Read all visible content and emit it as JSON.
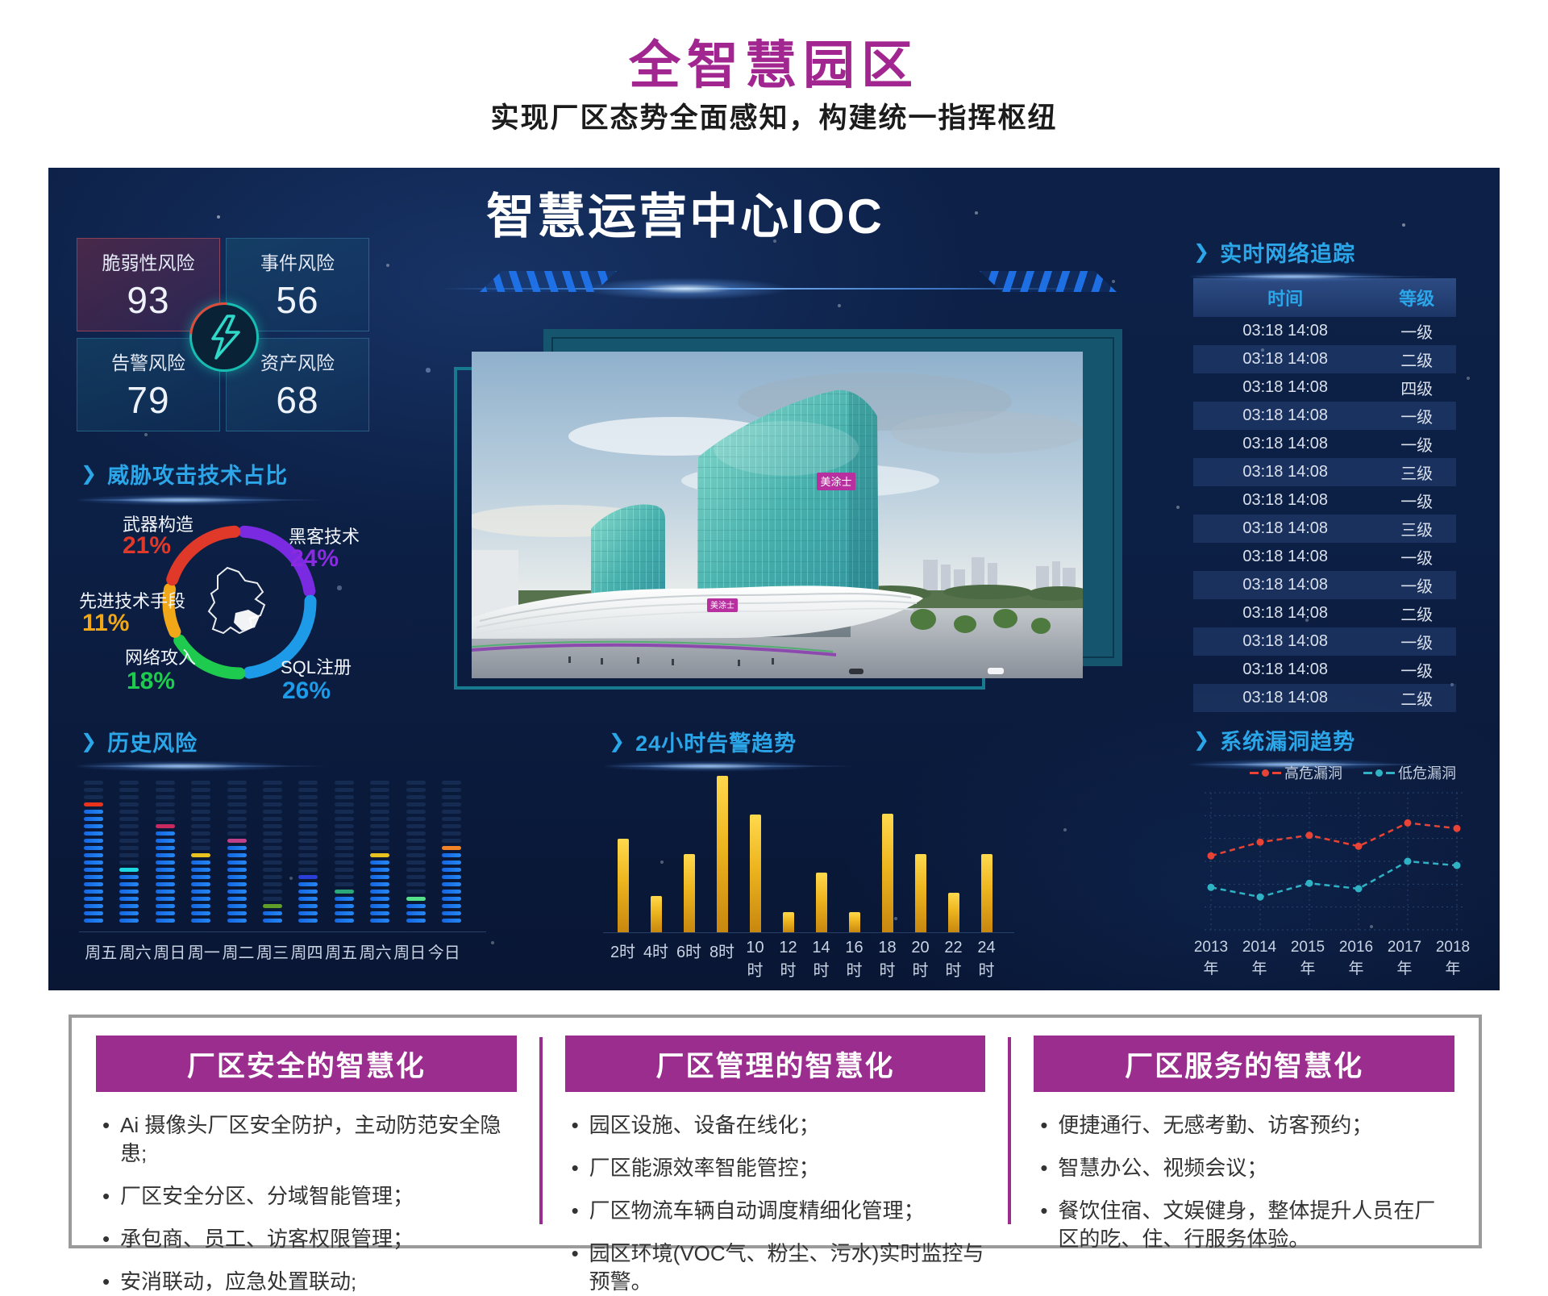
{
  "page": {
    "title": "全智慧园区",
    "subtitle": "实现厂区态势全面感知，构建统一指挥枢纽"
  },
  "dashboard": {
    "title": "智慧运营中心IOC",
    "stats": [
      {
        "label": "脆弱性风险",
        "value": "93"
      },
      {
        "label": "事件风险",
        "value": "56"
      },
      {
        "label": "告警风险",
        "value": "79"
      },
      {
        "label": "资产风险",
        "value": "68"
      }
    ],
    "photo_sign": "美涂士",
    "accent_colors": {
      "header_cyan": "#2ba6e8",
      "gold": "#edb51f",
      "magenta": "#a1268f",
      "card_purple": "#9b2d8e"
    }
  },
  "chart_data": [
    {
      "id": "threat_donut",
      "type": "pie",
      "title": "威胁攻击技术占比",
      "segments": [
        {
          "label": "黑客技术",
          "value": 24,
          "pct": "24%",
          "color": "#7a2be2"
        },
        {
          "label": "SQL注册",
          "value": 26,
          "pct": "26%",
          "color": "#1e9be8"
        },
        {
          "label": "网络攻入",
          "value": 18,
          "pct": "18%",
          "color": "#1ecb4f"
        },
        {
          "label": "先进技术手段",
          "value": 11,
          "pct": "11%",
          "color": "#f0a818"
        },
        {
          "label": "武器构造",
          "value": 21,
          "pct": "21%",
          "color": "#e0392a"
        }
      ],
      "note": "segments listed clockwise from top, ring with gaps, map outline in center"
    },
    {
      "id": "history_risk",
      "type": "bar",
      "title": "历史风险",
      "subtype": "segmented-equalizer-columns",
      "categories": [
        "周五",
        "周六",
        "周日",
        "周一",
        "周二",
        "周三",
        "周四",
        "周五",
        "周六",
        "周日",
        "今日"
      ],
      "total_slots": 20,
      "filled_slots": [
        17,
        8,
        14,
        10,
        12,
        3,
        7,
        5,
        10,
        4,
        11
      ],
      "marker_colors": [
        "#e8341c",
        "#1fd7e0",
        "#c8295f",
        "#e8c31f",
        "#bf3f88",
        "#5f9e28",
        "#2a3fd8",
        "#2aa87a",
        "#e8c31f",
        "#55e08a",
        "#f08228"
      ]
    },
    {
      "id": "alerts_24h",
      "type": "bar",
      "title": "24小时告警趋势",
      "categories": [
        "2时",
        "4时",
        "6时",
        "8时",
        "10时",
        "12时",
        "14时",
        "16时",
        "18时",
        "20时",
        "22时",
        "24时"
      ],
      "values": [
        60,
        23,
        50,
        100,
        75,
        13,
        38,
        13,
        76,
        50,
        25,
        50
      ],
      "ylim": [
        0,
        100
      ],
      "color": "#edb51f"
    },
    {
      "id": "vuln_trend",
      "type": "line",
      "title": "系统漏洞趋势",
      "x": [
        "2013年",
        "2014年",
        "2015年",
        "2016年",
        "2017年",
        "2018年"
      ],
      "series": [
        {
          "name": "高危漏洞",
          "color": "#e84334",
          "values": [
            54,
            64,
            69,
            61,
            78,
            74
          ]
        },
        {
          "name": "低危漏洞",
          "color": "#2fb3c4",
          "values": [
            31,
            24,
            34,
            30,
            50,
            47
          ]
        }
      ],
      "ylim": [
        0,
        100
      ],
      "grid": "dotted",
      "legend_position": "top-right",
      "line_style": "dashed-with-dot-markers"
    },
    {
      "id": "network_table",
      "type": "table",
      "title": "实时网络追踪",
      "columns": [
        "时间",
        "等级"
      ],
      "rows": [
        [
          "03:18 14:08",
          "一级"
        ],
        [
          "03:18 14:08",
          "二级"
        ],
        [
          "03:18 14:08",
          "四级"
        ],
        [
          "03:18 14:08",
          "一级"
        ],
        [
          "03:18 14:08",
          "一级"
        ],
        [
          "03:18 14:08",
          "三级"
        ],
        [
          "03:18 14:08",
          "一级"
        ],
        [
          "03:18 14:08",
          "三级"
        ],
        [
          "03:18 14:08",
          "一级"
        ],
        [
          "03:18 14:08",
          "一级"
        ],
        [
          "03:18 14:08",
          "二级"
        ],
        [
          "03:18 14:08",
          "一级"
        ],
        [
          "03:18 14:08",
          "一级"
        ],
        [
          "03:18 14:08",
          "二级"
        ]
      ]
    }
  ],
  "cards": [
    {
      "title": "厂区安全的智慧化",
      "bullets": [
        "Ai 摄像头厂区安全防护，主动防范安全隐患;",
        "厂区安全分区、分域智能管理；",
        "承包商、员工、访客权限管理；",
        "安消联动，应急处置联动;"
      ]
    },
    {
      "title": "厂区管理的智慧化",
      "bullets": [
        "园区设施、设备在线化；",
        "厂区能源效率智能管控；",
        "厂区物流车辆自动调度精细化管理；",
        "园区环境(VOC气、粉尘、污水)实时监控与预警。"
      ]
    },
    {
      "title": "厂区服务的智慧化",
      "bullets": [
        "便捷通行、无感考勤、访客预约；",
        "智慧办公、视频会议；",
        "餐饮住宿、文娱健身，整体提升人员在厂区的吃、住、行服务体验。"
      ]
    }
  ]
}
